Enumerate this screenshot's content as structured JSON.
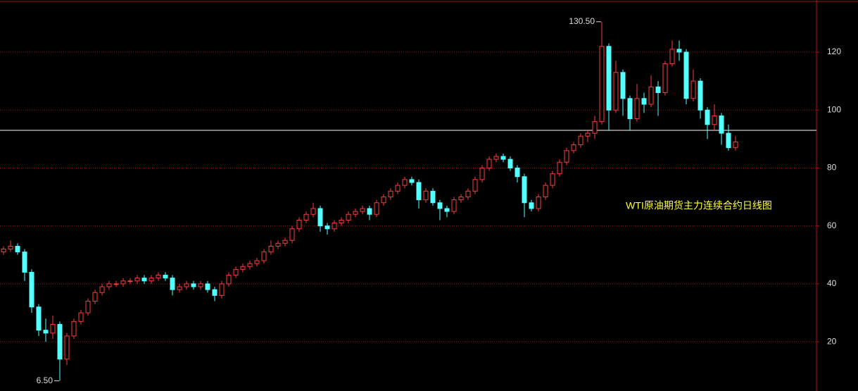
{
  "chart_data": {
    "type": "candlestick",
    "title": "WTI原油期货主力连续合约日线图",
    "open": [
      51,
      52,
      53,
      51,
      44,
      32,
      24,
      23,
      26,
      14,
      22,
      27,
      30,
      34,
      37,
      39,
      40,
      40,
      41,
      41,
      42,
      41,
      42,
      43,
      42,
      38,
      39,
      40,
      39,
      40,
      38,
      36,
      40,
      43,
      45,
      46,
      47,
      48,
      51,
      53,
      54,
      55,
      59,
      62,
      64,
      66,
      60,
      59,
      61,
      62,
      64,
      65,
      66,
      64,
      68,
      70,
      72,
      74,
      76,
      75,
      69,
      72,
      68,
      66,
      65,
      69,
      70,
      72,
      76,
      80,
      83,
      84,
      83,
      80,
      77,
      68,
      66,
      70,
      74,
      78,
      82,
      86,
      88,
      91,
      92,
      96,
      122,
      100,
      113,
      104,
      97,
      104,
      102,
      108,
      106,
      116,
      121,
      120,
      104,
      110,
      100,
      95,
      98,
      92,
      87
    ],
    "high": [
      53,
      55,
      54,
      52,
      45,
      33,
      28,
      29,
      27,
      23,
      28,
      31,
      35,
      38,
      40,
      41,
      41,
      42,
      42,
      43,
      43,
      43,
      44,
      44,
      43,
      40,
      41,
      41,
      41,
      41,
      39,
      41,
      44,
      46,
      47,
      48,
      49,
      52,
      55,
      55,
      56,
      60,
      63,
      65,
      68,
      67,
      61,
      62,
      63,
      65,
      66,
      67,
      67,
      69,
      71,
      73,
      75,
      77,
      77,
      76,
      73,
      73,
      69,
      67,
      70,
      71,
      73,
      77,
      81,
      84,
      85,
      85,
      84,
      81,
      78,
      69,
      71,
      75,
      79,
      83,
      87,
      89,
      92,
      93,
      98,
      130.5,
      123,
      117,
      114,
      105,
      109,
      106,
      112,
      110,
      117,
      124,
      124,
      121,
      114,
      111,
      101,
      102,
      99,
      95,
      91
    ],
    "low": [
      50,
      51,
      50,
      41,
      30,
      22,
      20,
      21,
      6.5,
      12,
      21,
      26,
      29,
      33,
      36,
      38,
      39,
      39,
      40,
      40,
      40,
      40,
      41,
      41,
      36,
      37,
      38,
      38,
      38,
      37,
      34,
      35,
      39,
      42,
      44,
      45,
      46,
      47,
      50,
      52,
      53,
      54,
      58,
      61,
      63,
      58,
      57,
      58,
      60,
      61,
      63,
      64,
      62,
      63,
      67,
      69,
      71,
      73,
      74,
      66,
      68,
      67,
      62,
      63,
      64,
      68,
      69,
      71,
      75,
      79,
      82,
      82,
      79,
      75,
      63,
      65,
      65,
      69,
      73,
      77,
      81,
      85,
      87,
      89,
      90,
      95,
      93,
      99,
      98,
      93,
      96,
      99,
      101,
      98,
      105,
      115,
      117,
      102,
      103,
      97,
      90,
      93,
      88,
      86,
      86
    ],
    "close": [
      52,
      53,
      51,
      44,
      32,
      24,
      23,
      26,
      14,
      22,
      27,
      30,
      34,
      37,
      39,
      40,
      40,
      41,
      41,
      42,
      41,
      42,
      43,
      42,
      38,
      39,
      40,
      39,
      40,
      38,
      36,
      40,
      43,
      45,
      46,
      47,
      48,
      51,
      53,
      54,
      55,
      59,
      62,
      64,
      66,
      60,
      59,
      61,
      62,
      64,
      65,
      66,
      64,
      68,
      70,
      72,
      74,
      76,
      75,
      69,
      72,
      68,
      66,
      65,
      69,
      70,
      72,
      76,
      80,
      83,
      84,
      83,
      80,
      77,
      68,
      66,
      70,
      74,
      78,
      82,
      86,
      88,
      91,
      92,
      96,
      122,
      100,
      113,
      104,
      97,
      104,
      102,
      108,
      106,
      116,
      121,
      120,
      104,
      110,
      100,
      95,
      98,
      92,
      87,
      89
    ],
    "up_color": "#ff3c3c",
    "down_color": "#54ffff",
    "ylim": [
      3,
      138
    ],
    "yticks": [
      20,
      40,
      60,
      80,
      100,
      120
    ],
    "grid": true,
    "reference_line": 93,
    "annotations": [
      {
        "text": "130.50",
        "value": 130.5,
        "field": "high"
      },
      {
        "text": "6.50",
        "value": 6.5,
        "field": "low"
      }
    ]
  }
}
